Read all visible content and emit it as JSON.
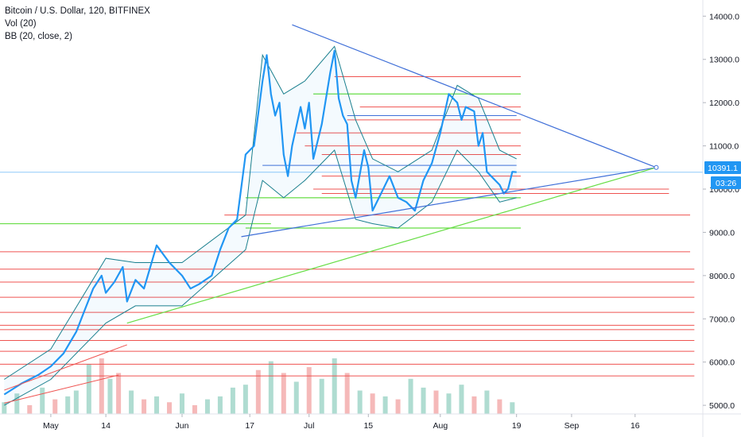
{
  "legend": {
    "symbol": "Bitcoin / U.S. Dollar, 120, BITFINEX",
    "volume": "Vol (20)",
    "bollinger": "BB (20, close, 2)"
  },
  "colors": {
    "price": "#2196f3",
    "band": "#1a7f8e",
    "hline_red": "#ef5350",
    "hline_green": "#4caf50",
    "trend_blue": "#3f6fd8",
    "trend_green": "#66dd44",
    "vol_up": "#9bd3c5",
    "vol_down": "#f3a8a8",
    "tag_bg": "#2196f3",
    "axis_text": "#131722"
  },
  "chart_data": {
    "type": "line",
    "title": "Bitcoin / U.S. Dollar, 120, BITFINEX",
    "ylim": [
      4800,
      14300
    ],
    "y_ticks": [
      "14000.0",
      "13000.0",
      "12000.0",
      "11000.0",
      "10000.0",
      "9000.0",
      "8000.0",
      "7000.0",
      "6000.0",
      "5000.0"
    ],
    "y_tick_values": [
      14000,
      13000,
      12000,
      11000,
      10000,
      9000,
      8000,
      7000,
      6000,
      5000
    ],
    "x_ticks": [
      "May",
      "14",
      "Jun",
      "17",
      "Jul",
      "15",
      "Aug",
      "19",
      "Sep",
      "16"
    ],
    "x_tick_days": [
      0,
      13,
      31,
      47,
      61,
      75,
      92,
      110,
      123,
      138
    ],
    "x_range_days": [
      -12,
      154
    ],
    "last_price": "10391.1",
    "countdown": "03:26",
    "series": [
      {
        "name": "BTCUSD",
        "days": [
          -11,
          -7,
          -3,
          0,
          3,
          6,
          8,
          10,
          12,
          13,
          15,
          17,
          18,
          20,
          22,
          25,
          28,
          31,
          33,
          35,
          38,
          40,
          42,
          44,
          46,
          48,
          50,
          51,
          52,
          53,
          54,
          55,
          56,
          57,
          59,
          60,
          61,
          62,
          64,
          66,
          67,
          68,
          69,
          70,
          71,
          72,
          74,
          75,
          76,
          78,
          80,
          82,
          84,
          86,
          88,
          90,
          92,
          94,
          96,
          97,
          98,
          100,
          101,
          102,
          103,
          104,
          106,
          107,
          108,
          109,
          110
        ],
        "values": [
          5250,
          5500,
          5700,
          5900,
          6200,
          6700,
          7200,
          7700,
          8000,
          7600,
          7850,
          8200,
          7400,
          7900,
          7700,
          8700,
          8300,
          8000,
          7700,
          7800,
          8000,
          8600,
          9100,
          9300,
          10800,
          11000,
          12500,
          13100,
          12200,
          11700,
          12000,
          10800,
          10300,
          11000,
          11900,
          11400,
          12000,
          10700,
          11500,
          12700,
          13200,
          12100,
          11700,
          11500,
          10200,
          9800,
          10900,
          10500,
          9500,
          9900,
          10300,
          9800,
          9700,
          9500,
          10200,
          10600,
          11300,
          12200,
          12000,
          11600,
          11900,
          11800,
          11000,
          11300,
          10400,
          10300,
          10100,
          9900,
          10000,
          10400,
          10391
        ]
      }
    ],
    "bands": {
      "days": [
        -11,
        0,
        13,
        20,
        31,
        46,
        50,
        55,
        60,
        67,
        72,
        76,
        82,
        90,
        96,
        101,
        106,
        110
      ],
      "upper": [
        5600,
        6300,
        8400,
        8300,
        8300,
        9400,
        13100,
        12200,
        12500,
        13300,
        11600,
        10700,
        10400,
        10900,
        12400,
        12100,
        10900,
        10700
      ],
      "lower": [
        5000,
        5600,
        6900,
        7300,
        7300,
        8600,
        10200,
        9800,
        10200,
        10900,
        9300,
        9200,
        9100,
        9700,
        10900,
        10400,
        9700,
        9800
      ]
    },
    "volume": {
      "days": [
        -11,
        -8,
        -5,
        -2,
        1,
        4,
        6,
        9,
        12,
        14,
        16,
        19,
        22,
        25,
        28,
        31,
        34,
        37,
        40,
        43,
        46,
        49,
        52,
        55,
        58,
        61,
        64,
        67,
        70,
        73,
        76,
        79,
        82,
        85,
        88,
        91,
        94,
        97,
        100,
        103,
        106,
        109
      ],
      "values": [
        20,
        35,
        15,
        45,
        25,
        30,
        40,
        85,
        95,
        60,
        70,
        40,
        25,
        30,
        20,
        35,
        15,
        25,
        30,
        45,
        50,
        75,
        90,
        70,
        55,
        80,
        60,
        95,
        70,
        40,
        35,
        30,
        25,
        60,
        45,
        40,
        35,
        50,
        30,
        40,
        25,
        20
      ],
      "up": [
        true,
        true,
        false,
        true,
        false,
        true,
        true,
        true,
        false,
        true,
        false,
        true,
        false,
        true,
        false,
        true,
        false,
        true,
        true,
        true,
        true,
        false,
        true,
        false,
        true,
        false,
        true,
        true,
        false,
        true,
        false,
        true,
        false,
        true,
        true,
        false,
        true,
        true,
        false,
        true,
        false,
        true
      ]
    },
    "hlines_red": [
      {
        "y": 12600,
        "d0": 67,
        "d1": 111
      },
      {
        "y": 11900,
        "d0": 73,
        "d1": 111
      },
      {
        "y": 11600,
        "d0": 70,
        "d1": 111
      },
      {
        "y": 11300,
        "d0": 58,
        "d1": 111
      },
      {
        "y": 11000,
        "d0": 60,
        "d1": 111
      },
      {
        "y": 10800,
        "d0": 64,
        "d1": 111
      },
      {
        "y": 10300,
        "d0": 64,
        "d1": 111
      },
      {
        "y": 10000,
        "d0": 62,
        "d1": 146
      },
      {
        "y": 9900,
        "d0": 64,
        "d1": 146
      },
      {
        "y": 9400,
        "d0": 41,
        "d1": 151
      },
      {
        "y": 8550,
        "d0": -12,
        "d1": 151
      },
      {
        "y": 8150,
        "d0": -12,
        "d1": 152
      },
      {
        "y": 7850,
        "d0": -12,
        "d1": 152
      },
      {
        "y": 7500,
        "d0": -12,
        "d1": 152
      },
      {
        "y": 7150,
        "d0": -12,
        "d1": 152
      },
      {
        "y": 6850,
        "d0": -12,
        "d1": 152
      },
      {
        "y": 6750,
        "d0": -12,
        "d1": 152
      },
      {
        "y": 6500,
        "d0": -12,
        "d1": 152
      },
      {
        "y": 6250,
        "d0": -12,
        "d1": 152
      },
      {
        "y": 5950,
        "d0": -12,
        "d1": 152
      },
      {
        "y": 5680,
        "d0": -12,
        "d1": 152
      }
    ],
    "hlines_green": [
      {
        "y": 12200,
        "d0": 62,
        "d1": 111
      },
      {
        "y": 9800,
        "d0": 46,
        "d1": 111
      },
      {
        "y": 9100,
        "d0": 46,
        "d1": 111
      },
      {
        "y": 9200,
        "d0": -12,
        "d1": 52
      }
    ],
    "hlines_blue": [
      {
        "y": 10550,
        "d0": 50,
        "d1": 110
      },
      {
        "y": 11700,
        "d0": 70,
        "d1": 110
      }
    ],
    "trendlines_blue": [
      {
        "d0": 57,
        "y0": 13800,
        "d1": 143,
        "y1": 10500
      },
      {
        "d0": 45,
        "y0": 8900,
        "d1": 143,
        "y1": 10500
      }
    ],
    "trendlines_green": [
      {
        "d0": 18,
        "y0": 6900,
        "d1": 143,
        "y1": 10500
      }
    ],
    "trendlines_red": [
      {
        "d0": -11,
        "y0": 5350,
        "d1": 18,
        "y1": 6400
      },
      {
        "d0": -11,
        "y0": 5050,
        "d1": 16,
        "y1": 5700
      }
    ]
  }
}
